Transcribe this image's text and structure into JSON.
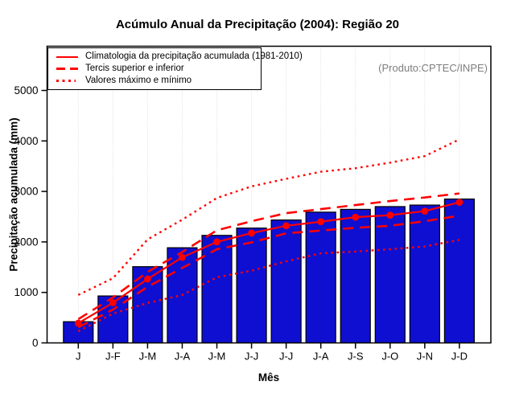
{
  "header": {
    "title": "Acúmulo Anual da Precipitação (2004): Região 20"
  },
  "plot_note": "(Produto:CPTEC/INPE)",
  "legend": {
    "items": [
      {
        "label": "Climatologia da precipitação acumulada (1981-2010)",
        "style": "solid"
      },
      {
        "label": "Tercis superior e inferior",
        "style": "dashed"
      },
      {
        "label": "Valores máximo e mínimo",
        "style": "dotted"
      }
    ]
  },
  "colors": {
    "line": "#ff0000",
    "bar_fill": "#0f0fd2",
    "bar_border": "#000000",
    "grid": "#d8d8d8",
    "axis": "#000000",
    "note_text": "#7e7e7e"
  },
  "chart_data": {
    "type": "bar",
    "title": "Acúmulo Anual da Precipitação (2004): Região 20",
    "xlabel": "Mês",
    "ylabel": "Precipitação acumulada (mm)",
    "ylim": [
      0,
      5000
    ],
    "yticks": [
      0,
      1000,
      2000,
      3000,
      4000,
      5000
    ],
    "grid": "vertical-dotted",
    "legend_position": "topleft",
    "categories": [
      "J",
      "J-F",
      "J-M",
      "J-A",
      "J-M",
      "J-J",
      "J-J",
      "J-A",
      "J-S",
      "J-O",
      "J-N",
      "J-D"
    ],
    "series": [
      {
        "name": "Precipitação acumulada 2004",
        "type": "bar",
        "values": [
          420,
          930,
          1510,
          1885,
          2130,
          2275,
          2435,
          2590,
          2645,
          2700,
          2730,
          2850
        ]
      },
      {
        "name": "Climatologia da precipitação acumulada (1981-2010)",
        "type": "line",
        "style": "solid",
        "marker": true,
        "values": [
          390,
          795,
          1265,
          1695,
          2000,
          2175,
          2320,
          2400,
          2490,
          2530,
          2610,
          2785
        ]
      },
      {
        "name": "Tercil superior",
        "type": "line",
        "style": "dashed",
        "marker": false,
        "values": [
          470,
          900,
          1405,
          1800,
          2230,
          2410,
          2570,
          2650,
          2730,
          2810,
          2880,
          2960
        ]
      },
      {
        "name": "Tercil inferior",
        "type": "line",
        "style": "dashed",
        "marker": false,
        "values": [
          310,
          660,
          1110,
          1485,
          1855,
          1990,
          2170,
          2225,
          2280,
          2320,
          2410,
          2520
        ]
      },
      {
        "name": "Valor máximo",
        "type": "line",
        "style": "dotted",
        "marker": false,
        "values": [
          950,
          1280,
          2050,
          2440,
          2870,
          3100,
          3250,
          3390,
          3460,
          3570,
          3700,
          4030
        ]
      },
      {
        "name": "Valor mínimo",
        "type": "line",
        "style": "dotted",
        "marker": false,
        "values": [
          230,
          580,
          790,
          950,
          1300,
          1430,
          1615,
          1775,
          1810,
          1855,
          1910,
          2040
        ]
      }
    ]
  }
}
